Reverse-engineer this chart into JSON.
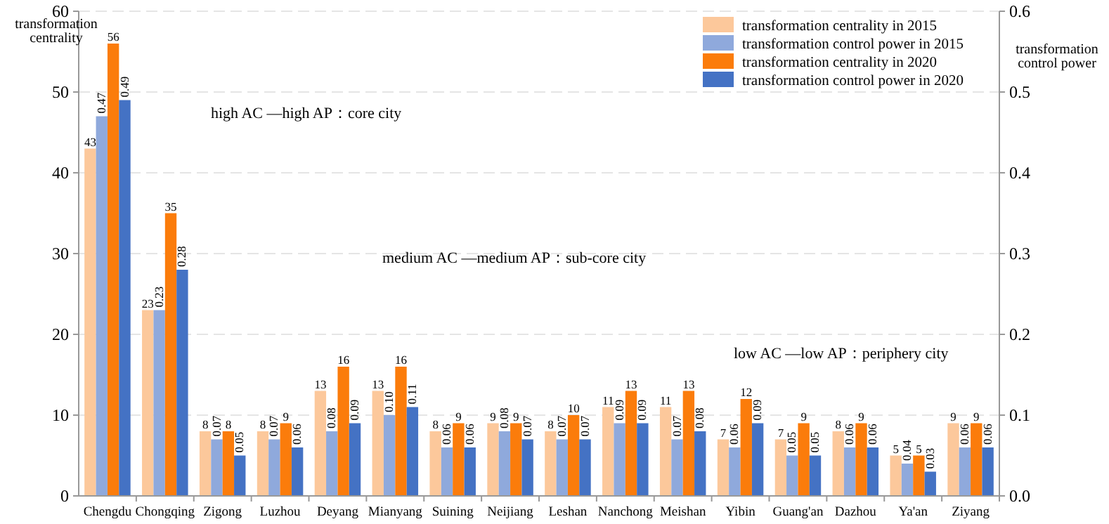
{
  "chart_data": {
    "type": "bar",
    "ylabel": "transformation\ncentrality",
    "y2label": "transformation\ncontrol power",
    "categories": [
      "Chengdu",
      "Chongqing",
      "Zigong",
      "Luzhou",
      "Deyang",
      "Mianyang",
      "Suining",
      "Neijiang",
      "Leshan",
      "Nanchong",
      "Meishan",
      "Yibin",
      "Guang'an",
      "Dazhou",
      "Ya'an",
      "Ziyang"
    ],
    "series": [
      {
        "name": "transformation centrality in 2015",
        "color": "#fcc89b",
        "values": [
          43,
          23,
          8,
          8,
          13,
          13,
          8,
          9,
          8,
          11,
          11,
          7,
          7,
          8,
          5,
          9
        ],
        "value_labels": [
          "43",
          "23",
          "8",
          "8",
          "13",
          "13",
          "8",
          "9",
          "8",
          "11",
          "11",
          "7",
          "7",
          "8",
          "5",
          "9"
        ]
      },
      {
        "name": "transformation control power in 2015",
        "color": "#8fa9dc",
        "axis": "y2",
        "values": [
          0.47,
          0.23,
          0.07,
          0.07,
          0.08,
          0.1,
          0.06,
          0.08,
          0.07,
          0.09,
          0.07,
          0.06,
          0.05,
          0.06,
          0.04,
          0.06
        ],
        "value_labels": [
          "0.47",
          "0.23",
          "0.07",
          "0.07",
          "0.08",
          "0.10",
          "0.06",
          "0.08",
          "0.07",
          "0.09",
          "0.07",
          "0.06",
          "0.05",
          "0.06",
          "0.04",
          "0.06"
        ]
      },
      {
        "name": "transformation centrality in 2020",
        "color": "#fb7c0b",
        "values": [
          56,
          35,
          8,
          9,
          16,
          16,
          9,
          9,
          10,
          13,
          13,
          12,
          9,
          9,
          5,
          9
        ],
        "value_labels": [
          "56",
          "35",
          "8",
          "9",
          "16",
          "16",
          "9",
          "9",
          "10",
          "13",
          "13",
          "12",
          "9",
          "9",
          "5",
          "9"
        ]
      },
      {
        "name": "transformation control power in 2020",
        "color": "#4472c4",
        "axis": "y2",
        "values": [
          0.49,
          0.28,
          0.05,
          0.06,
          0.09,
          0.11,
          0.06,
          0.07,
          0.07,
          0.09,
          0.08,
          0.09,
          0.05,
          0.06,
          0.03,
          0.06
        ],
        "value_labels": [
          "0.49",
          "0.28",
          "0.05",
          "0.06",
          "0.09",
          "0.11",
          "0.06",
          "0.07",
          "0.07",
          "0.09",
          "0.08",
          "0.09",
          "0.05",
          "0.06",
          "0.03",
          "0.06"
        ]
      }
    ],
    "ylim": [
      0,
      60
    ],
    "yticks": [
      0,
      10,
      20,
      30,
      40,
      50,
      60
    ],
    "y2lim": [
      0,
      0.6
    ],
    "y2ticks": [
      {
        "value": 0,
        "label": "0.0"
      },
      {
        "value": 0.1,
        "label": "0.1"
      },
      {
        "value": 0.2,
        "label": "0.2"
      },
      {
        "value": 0.3,
        "label": "0.3"
      },
      {
        "value": 0.4,
        "label": "0.4"
      },
      {
        "value": 0.5,
        "label": "0.5"
      },
      {
        "value": 0.6,
        "label": "0.6"
      }
    ],
    "grid": "y",
    "legend": "top right",
    "annotations": [
      "high AC —high AP：core city",
      "medium AC —medium AP：sub-core city",
      "low AC —low AP：periphery city"
    ]
  }
}
